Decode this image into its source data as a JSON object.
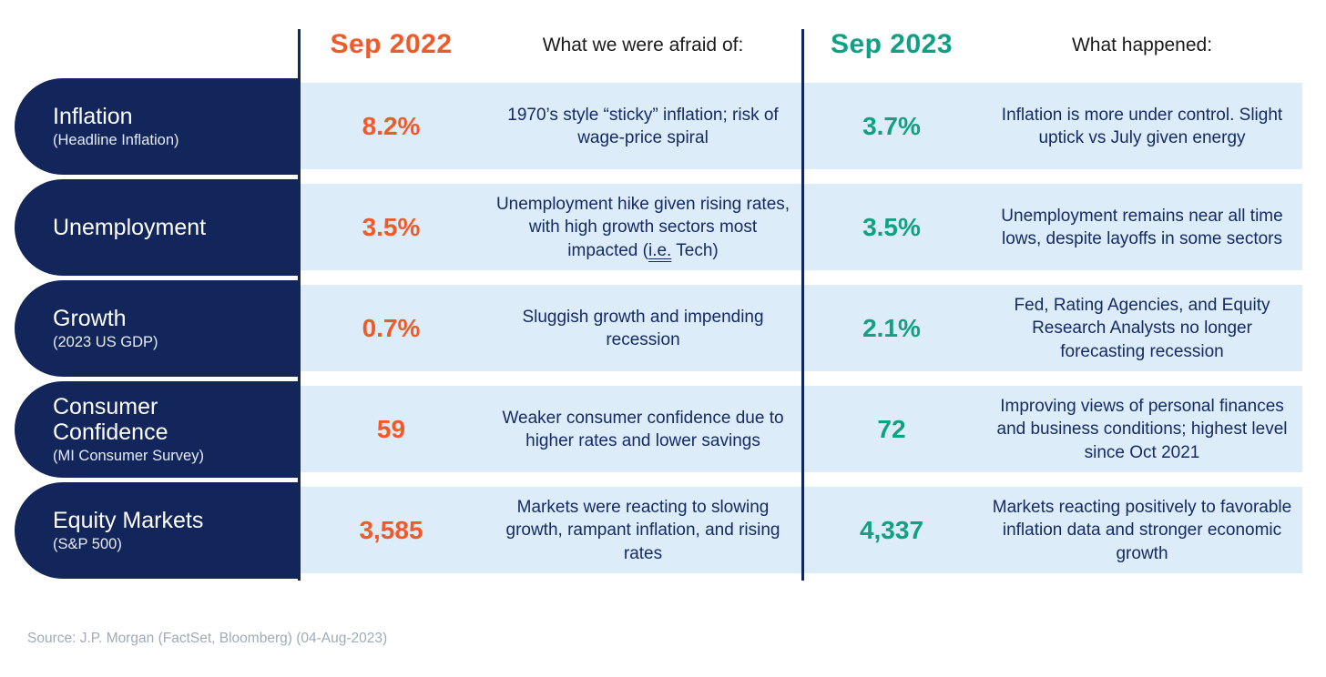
{
  "header": {
    "col_2022": "Sep 2022",
    "col_afraid": "What we were afraid of:",
    "col_2023": "Sep 2023",
    "col_happened": "What happened:"
  },
  "colors": {
    "navy": "#13265c",
    "band_blue": "#dcedf9",
    "accent_2022_orange": "#f05a28",
    "accent_2023_teal": "#10a184",
    "description_navy": "#152a66",
    "source_grey": "#9fabb9"
  },
  "rows": [
    {
      "label": "Inflation",
      "sublabel": "(Headline Inflation)",
      "value_2022": "8.2%",
      "afraid": "1970’s style “sticky” inflation; risk of wage-price spiral",
      "value_2023": "3.7%",
      "happened": "Inflation is more under control. Slight uptick vs July given energy"
    },
    {
      "label": "Unemployment",
      "sublabel": "",
      "value_2022": "3.5%",
      "afraid_parts": {
        "before": "Unemployment hike given rising rates, with high growth sectors most impacted (",
        "underlined": "i.e.",
        "after": " Tech)"
      },
      "value_2023": "3.5%",
      "happened": "Unemployment remains near all time lows, despite layoffs in some sectors"
    },
    {
      "label": "Growth",
      "sublabel": "(2023 US GDP)",
      "value_2022": "0.7%",
      "afraid": "Sluggish growth and impending recession",
      "value_2023": "2.1%",
      "happened": "Fed, Rating Agencies, and Equity Research Analysts no longer forecasting recession"
    },
    {
      "label": "Consumer\nConfidence",
      "sublabel": "(MI Consumer Survey)",
      "value_2022": "59",
      "afraid": "Weaker consumer confidence due to higher rates and lower savings",
      "value_2023": "72",
      "happened": "Improving views of personal finances and business conditions; highest level since Oct 2021"
    },
    {
      "label": "Equity Markets",
      "sublabel": "(S&P 500)",
      "value_2022": "3,585",
      "afraid": "Markets were reacting to slowing growth, rampant inflation, and rising rates",
      "value_2023": "4,337",
      "happened": "Markets reacting positively to favorable inflation data and stronger economic growth"
    }
  ],
  "source": "Source: J.P. Morgan (FactSet, Bloomberg) (04-Aug-2023)",
  "chart_data": {
    "type": "table",
    "title": "",
    "columns": [
      "Metric",
      "Sep 2022",
      "What we were afraid of:",
      "Sep 2023",
      "What happened:"
    ],
    "rows": [
      [
        "Inflation (Headline Inflation)",
        "8.2%",
        "1970’s style “sticky” inflation; risk of wage-price spiral",
        "3.7%",
        "Inflation is more under control. Slight uptick vs July given energy"
      ],
      [
        "Unemployment",
        "3.5%",
        "Unemployment hike given rising rates, with high growth sectors most impacted (i.e. Tech)",
        "3.5%",
        "Unemployment remains near all time lows, despite layoffs in some sectors"
      ],
      [
        "Growth (2023 US GDP)",
        "0.7%",
        "Sluggish growth and impending recession",
        "2.1%",
        "Fed, Rating Agencies, and Equity Research Analysts no longer forecasting recession"
      ],
      [
        "Consumer Confidence (MI Consumer Survey)",
        "59",
        "Weaker consumer confidence due to higher rates and lower savings",
        "72",
        "Improving views of personal finances and business conditions; highest level since Oct 2021"
      ],
      [
        "Equity Markets (S&P 500)",
        "3,585",
        "Markets were reacting to slowing growth, rampant inflation, and rising rates",
        "4,337",
        "Markets reacting positively to favorable inflation data and stronger economic growth"
      ]
    ],
    "layout_hints": {
      "2022_accent_color": "#f05a28",
      "2023_accent_color": "#10a184",
      "row_label_style": "navy pill, rounded left edge",
      "body_background": "light blue bands"
    }
  }
}
